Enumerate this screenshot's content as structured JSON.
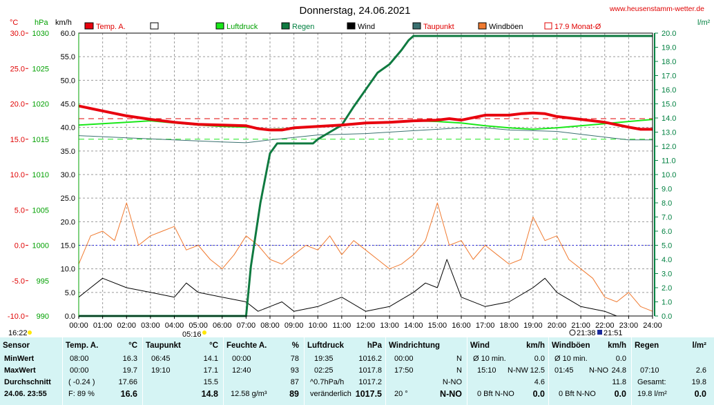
{
  "title": "Donnerstag, 24.06.2021",
  "website": "www.heusenstamm-wetter.de",
  "axes": {
    "temp_unit": "°C",
    "press_unit": "hPa",
    "speed_unit": "km/h",
    "rain_unit": "l/m²",
    "temp_ticks": [
      "30.0",
      "25.0",
      "20.0",
      "15.0",
      "10.0",
      "5.0",
      "0.0",
      "-5.0",
      "-10.0"
    ],
    "press_ticks": [
      "1030",
      "1025",
      "1020",
      "1015",
      "1010",
      "1005",
      "1000",
      "995",
      "990"
    ],
    "speed_ticks": [
      "60.0",
      "55.0",
      "50.0",
      "45.0",
      "40.0",
      "35.0",
      "30.0",
      "25.0",
      "20.0",
      "15.0",
      "10.0",
      "5.0",
      "0.0"
    ],
    "rain_ticks": [
      "20.0",
      "19.0",
      "18.0",
      "17.0",
      "16.0",
      "15.0",
      "14.0",
      "13.0",
      "12.0",
      "11.0",
      "10.0",
      "9.0",
      "8.0",
      "7.0",
      "6.0",
      "5.0",
      "4.0",
      "3.0",
      "2.0",
      "1.0",
      "0.0"
    ],
    "time_ticks": [
      "00:00",
      "01:00",
      "02:00",
      "03:00",
      "04:00",
      "05:00",
      "06:00",
      "07:00",
      "08:00",
      "09:00",
      "10:00",
      "11:00",
      "12:00",
      "13:00",
      "14:00",
      "15:00",
      "16:00",
      "17:00",
      "18:00",
      "19:00",
      "20:00",
      "21:00",
      "22:00",
      "23:00",
      "24:00"
    ]
  },
  "legend": {
    "temp": "Temp. A.",
    "extra": "",
    "press": "Luftdruck",
    "rain": "Regen",
    "wind": "Wind",
    "dew": "Taupunkt",
    "gust": "Windböen",
    "month": "17.9 Monat-Ø"
  },
  "markers": {
    "sunrise": "05:16",
    "sunset": "21:51",
    "moonrise": "16:22",
    "moonset": "21:38"
  },
  "colors": {
    "temp": "#e8000e",
    "press": "#18e818",
    "rain": "#0f7a40",
    "wind": "#000000",
    "dew": "#3a7070",
    "gust": "#f07a30",
    "axis_temp": "#e00000",
    "axis_press": "#00a000",
    "axis_rain": "#008040"
  },
  "chart_data": {
    "type": "line",
    "x_unit": "hour of day",
    "xlim": [
      0,
      24
    ],
    "series": [
      {
        "name": "Temp. A.",
        "unit": "°C",
        "x": [
          0,
          1,
          2,
          3,
          4,
          5,
          6,
          7,
          7.5,
          8,
          8.5,
          9,
          10,
          11,
          12,
          13,
          14,
          15,
          15.5,
          16,
          17,
          18,
          18.5,
          19,
          19.5,
          20,
          21,
          22,
          23,
          23.5,
          24
        ],
        "y": [
          19.7,
          19.0,
          18.3,
          17.8,
          17.4,
          17.1,
          17.0,
          16.9,
          16.5,
          16.3,
          16.3,
          16.6,
          16.8,
          17.0,
          17.3,
          17.4,
          17.6,
          17.7,
          17.9,
          17.7,
          18.4,
          18.4,
          18.6,
          18.7,
          18.6,
          18.2,
          17.8,
          17.4,
          16.7,
          16.4,
          16.4
        ]
      },
      {
        "name": "Luftdruck",
        "unit": "hPa",
        "x": [
          0,
          1,
          2,
          3,
          4,
          5,
          6,
          7,
          8,
          9,
          10,
          11,
          12,
          13,
          14,
          15,
          16,
          17,
          18,
          19,
          20,
          21,
          22,
          23,
          24
        ],
        "y": [
          1017.0,
          1017.2,
          1017.4,
          1017.6,
          1017.3,
          1017.0,
          1016.8,
          1016.7,
          1016.4,
          1016.5,
          1016.8,
          1017.0,
          1017.3,
          1017.4,
          1017.6,
          1017.5,
          1017.3,
          1016.9,
          1016.6,
          1016.4,
          1016.6,
          1016.9,
          1017.2,
          1017.5,
          1017.8
        ]
      },
      {
        "name": "Regen",
        "unit": "l/m²",
        "x": [
          0,
          7,
          7.2,
          7.6,
          8,
          8.3,
          8.5,
          9,
          9.8,
          10,
          10.5,
          11,
          11.5,
          12,
          12.5,
          13,
          13.5,
          13.8,
          14,
          24
        ],
        "y": [
          0,
          0,
          3.5,
          8,
          11.5,
          12.2,
          12.2,
          12.2,
          12.2,
          12.5,
          13,
          13.5,
          14.8,
          16,
          17.2,
          17.8,
          18.8,
          19.5,
          19.8,
          19.8
        ]
      },
      {
        "name": "Taupunkt",
        "unit": "°C",
        "x": [
          0,
          2,
          4,
          6,
          7,
          8,
          10,
          12,
          14,
          16,
          17,
          18,
          19,
          20,
          21,
          22,
          23,
          24
        ],
        "y": [
          15.5,
          15.2,
          14.9,
          14.6,
          14.5,
          14.9,
          15.6,
          15.8,
          16.2,
          16.6,
          16.6,
          16.3,
          16.2,
          16.1,
          15.7,
          15.3,
          14.9,
          14.9
        ]
      },
      {
        "name": "Wind",
        "unit": "km/h",
        "x": [
          0,
          1,
          2,
          3,
          4,
          4.5,
          5,
          6,
          7,
          7.5,
          8,
          8.5,
          9,
          10,
          11,
          12,
          13,
          14,
          14.5,
          15,
          15.4,
          16,
          17,
          18,
          19,
          19.5,
          20,
          21,
          22,
          22.5,
          23,
          24
        ],
        "y": [
          4,
          8,
          6,
          5,
          4,
          7,
          5,
          4,
          3,
          1,
          2,
          3,
          1,
          2,
          4,
          1,
          2,
          5,
          7,
          6,
          12,
          4,
          2,
          3,
          6,
          8,
          5,
          2,
          1,
          0,
          0,
          0
        ]
      },
      {
        "name": "Windböen",
        "unit": "km/h",
        "x": [
          0,
          0.5,
          1,
          1.5,
          2,
          2.5,
          3,
          3.5,
          4,
          4.5,
          5,
          5.5,
          6,
          6.5,
          7,
          7.5,
          8,
          8.5,
          9,
          9.5,
          10,
          10.5,
          11,
          11.5,
          12,
          12.5,
          13,
          13.5,
          14,
          14.5,
          15,
          15.5,
          16,
          16.5,
          17,
          17.5,
          18,
          18.5,
          19,
          19.5,
          20,
          20.5,
          21,
          21.5,
          22,
          22.5,
          23,
          23.5,
          24
        ],
        "y": [
          11,
          17,
          18,
          16,
          24,
          15,
          17,
          18,
          19,
          14,
          15,
          12,
          10,
          13,
          17,
          15,
          12,
          11,
          13,
          15,
          14,
          17,
          13,
          16,
          14,
          12,
          10,
          11,
          13,
          16,
          24,
          15,
          16,
          12,
          15,
          13,
          11,
          12,
          21,
          16,
          17,
          12,
          10,
          8,
          4,
          3,
          5,
          2,
          1
        ]
      }
    ],
    "reference_lines": [
      {
        "name": "17.9 Monat-Ø",
        "unit": "°C",
        "value": 17.9
      },
      {
        "name": "0 °C",
        "unit": "°C",
        "value": 0
      },
      {
        "unit": "°C",
        "value": 15.0
      }
    ]
  },
  "table": {
    "left": {
      "h_sensor": "Sensor",
      "min": "MinWert",
      "max": "MaxWert",
      "avg": "Durchschnitt",
      "date": "24.06. 23:55"
    },
    "temp": {
      "h": "Temp. A.",
      "u": "°C",
      "min_t": "08:00",
      "min_v": "16.3",
      "max_t": "00:00",
      "max_v": "19.7",
      "avg_t": "( -0.24 )",
      "avg_v": "17.66",
      "f_label": "F: 89 %",
      "now": "16.6"
    },
    "dew": {
      "h": "Taupunkt",
      "u": "°C",
      "min_t": "06:45",
      "min_v": "14.1",
      "max_t": "19:10",
      "max_v": "17.1",
      "avg_v": "15.5",
      "now": "14.8"
    },
    "hum": {
      "h": "Feuchte A.",
      "u": "%",
      "min_t": "00:00",
      "min_v": "78",
      "max_t": "12:40",
      "max_v": "93",
      "avg_v": "87",
      "abs": "12.58 g/m³",
      "now": "89"
    },
    "press": {
      "h": "Luftdruck",
      "u": "hPa",
      "min_t": "19:35",
      "min_v": "1016.2",
      "max_t": "02:25",
      "max_v": "1017.8",
      "trend_l": "^0.7hPa/h",
      "trend_v": "1017.2",
      "state": "veränderlich",
      "now": "1017.5"
    },
    "dir": {
      "h": "Windrichtung",
      "min_t": "00:00",
      "min_v": "N",
      "max_t": "17:50",
      "max_v": "N",
      "avg_v": "N-NO",
      "deg": "20 °",
      "now": "N-NO"
    },
    "wind": {
      "h": "Wind",
      "u": "km/h",
      "r1_l": "Ø 10 min.",
      "r1_v": "0.0",
      "r2_t": "15:10",
      "r2_d": "N-NW",
      "r2_v": "12.5",
      "r3_v": "4.6",
      "r4_l": "0 Bft N-NO",
      "now": "0.0"
    },
    "gust": {
      "h": "Windböen",
      "u": "km/h",
      "r1_l": "Ø 10 min.",
      "r1_v": "0.0",
      "r2_t": "01:45",
      "r2_d": "N-NO",
      "r2_v": "24.8",
      "r3_v": "11.8",
      "r4_l": "0 Bft N-NO",
      "now": "0.0"
    },
    "rain": {
      "h": "Regen",
      "u": "l/m²",
      "r2_t": "07:10",
      "r2_v": "2.6",
      "r3_l": "Gesamt:",
      "r3_v": "19.8",
      "r4_l": "19.8 l/m²",
      "now": "0.0"
    }
  }
}
